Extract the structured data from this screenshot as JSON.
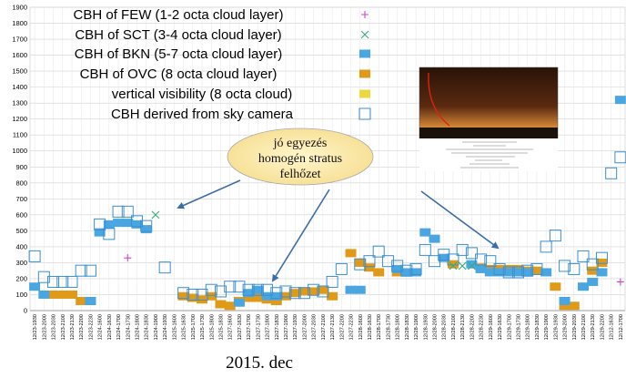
{
  "chart_data": {
    "type": "scatter",
    "xlabel": "2015. dec",
    "ylim": [
      0,
      1900
    ],
    "yticks": [
      0,
      100,
      200,
      300,
      400,
      500,
      600,
      700,
      800,
      900,
      1000,
      1100,
      1200,
      1300,
      1400,
      1500,
      1600,
      1700,
      1800,
      1900
    ],
    "grid": true,
    "legend_position": "top-left",
    "categories": [
      "12/23-1930",
      "12/23-2000",
      "12/23-2030",
      "12/23-2100",
      "12/23-2130",
      "12/23-2200",
      "12/23-2230",
      "12/24-1600",
      "12/24-1630",
      "12/24-1700",
      "12/24-1730",
      "12/24-1800",
      "12/24-1830",
      "12/24-1900",
      "12/24-1930",
      "12/25-1600",
      "12/25-1630",
      "12/25-1700",
      "12/25-1730",
      "12/25-1800",
      "12/25-1830",
      "12/27-1600",
      "12/27-1630",
      "12/27-1700",
      "12/27-1730",
      "12/27-1800",
      "12/27-1830",
      "12/27-1900",
      "12/27-1930",
      "12/27-2000",
      "12/27-2030",
      "12/27-2100",
      "12/27-2130",
      "12/27-2200",
      "12/27-2230",
      "12/28-1600",
      "12/28-1630",
      "12/28-1700",
      "12/28-1730",
      "12/28-1800",
      "12/28-1830",
      "12/28-1900",
      "12/28-1930",
      "12/28-2000",
      "12/28-2030",
      "12/28-2100",
      "12/28-2130",
      "12/28-2200",
      "12/28-2230",
      "12/29-1600",
      "12/29-1630",
      "12/29-1700",
      "12/29-1730",
      "12/29-1800",
      "12/29-1830",
      "12/29-1900",
      "12/29-1930",
      "12/29-2000",
      "12/29-2030",
      "12/29-2100",
      "12/29-2130",
      "12/29-2200",
      "12/12-1630",
      "12/12-1700"
    ],
    "series": [
      {
        "name": "CBH of FEW (1-2 octa cloud layer)",
        "marker": "plus",
        "color": "#cc44cc",
        "points": [
          [
            10,
            330
          ],
          [
            63,
            180
          ]
        ]
      },
      {
        "name": "CBH of SCT (3-4 octa cloud layer)",
        "marker": "x",
        "color": "#3aaa7a",
        "points": [
          [
            13,
            600
          ],
          [
            45,
            280
          ],
          [
            46,
            280
          ],
          [
            47,
            280
          ]
        ]
      },
      {
        "name": "CBH of BKN (5-7 octa cloud layer)",
        "marker": "square",
        "color": "#4aa6e0",
        "points": [
          [
            0,
            150
          ],
          [
            1,
            100
          ],
          [
            6,
            60
          ],
          [
            7,
            490
          ],
          [
            8,
            540
          ],
          [
            9,
            550
          ],
          [
            10,
            550
          ],
          [
            11,
            540
          ],
          [
            12,
            510
          ],
          [
            22,
            50
          ],
          [
            23,
            110
          ],
          [
            24,
            130
          ],
          [
            25,
            90
          ],
          [
            26,
            90
          ],
          [
            34,
            130
          ],
          [
            35,
            130
          ],
          [
            39,
            260
          ],
          [
            40,
            240
          ],
          [
            41,
            240
          ],
          [
            42,
            490
          ],
          [
            43,
            450
          ],
          [
            44,
            330
          ],
          [
            47,
            290
          ],
          [
            48,
            260
          ],
          [
            49,
            240
          ],
          [
            50,
            240
          ],
          [
            51,
            240
          ],
          [
            52,
            240
          ],
          [
            53,
            240
          ],
          [
            55,
            240
          ],
          [
            57,
            60
          ],
          [
            59,
            150
          ],
          [
            60,
            180
          ],
          [
            61,
            240
          ],
          [
            63,
            1320
          ]
        ]
      },
      {
        "name": "CBH of OVC   (8 octa cloud layer)",
        "marker": "square",
        "color": "#e09a18",
        "points": [
          [
            2,
            100
          ],
          [
            3,
            100
          ],
          [
            4,
            100
          ],
          [
            5,
            60
          ],
          [
            6,
            60
          ],
          [
            16,
            90
          ],
          [
            17,
            80
          ],
          [
            18,
            70
          ],
          [
            19,
            90
          ],
          [
            20,
            40
          ],
          [
            21,
            30
          ],
          [
            22,
            60
          ],
          [
            23,
            80
          ],
          [
            24,
            80
          ],
          [
            25,
            70
          ],
          [
            26,
            60
          ],
          [
            27,
            90
          ],
          [
            28,
            110
          ],
          [
            29,
            120
          ],
          [
            30,
            120
          ],
          [
            31,
            130
          ],
          [
            32,
            90
          ],
          [
            34,
            360
          ],
          [
            35,
            300
          ],
          [
            36,
            270
          ],
          [
            37,
            240
          ],
          [
            39,
            240
          ],
          [
            45,
            290
          ],
          [
            48,
            270
          ],
          [
            49,
            260
          ],
          [
            50,
            260
          ],
          [
            51,
            260
          ],
          [
            52,
            260
          ],
          [
            53,
            250
          ],
          [
            54,
            250
          ],
          [
            56,
            150
          ],
          [
            57,
            30
          ],
          [
            58,
            30
          ],
          [
            60,
            250
          ],
          [
            61,
            300
          ]
        ]
      },
      {
        "name": "vertical visibility (8 octa cloud)",
        "marker": "square",
        "color": "#eed840",
        "points": []
      },
      {
        "name": "CBH derived from sky camera",
        "marker": "hollow-square",
        "color": "#3a8fd0",
        "points": [
          [
            0,
            340
          ],
          [
            1,
            210
          ],
          [
            2,
            180
          ],
          [
            3,
            180
          ],
          [
            4,
            180
          ],
          [
            5,
            250
          ],
          [
            6,
            250
          ],
          [
            7,
            540
          ],
          [
            8,
            480
          ],
          [
            9,
            620
          ],
          [
            10,
            620
          ],
          [
            11,
            560
          ],
          [
            12,
            530
          ],
          [
            14,
            270
          ],
          [
            16,
            110
          ],
          [
            17,
            100
          ],
          [
            18,
            100
          ],
          [
            19,
            130
          ],
          [
            20,
            120
          ],
          [
            21,
            150
          ],
          [
            22,
            150
          ],
          [
            23,
            130
          ],
          [
            24,
            130
          ],
          [
            25,
            130
          ],
          [
            26,
            110
          ],
          [
            27,
            120
          ],
          [
            28,
            110
          ],
          [
            29,
            110
          ],
          [
            30,
            130
          ],
          [
            31,
            120
          ],
          [
            32,
            180
          ],
          [
            33,
            260
          ],
          [
            35,
            290
          ],
          [
            36,
            310
          ],
          [
            37,
            370
          ],
          [
            38,
            310
          ],
          [
            39,
            280
          ],
          [
            40,
            250
          ],
          [
            41,
            260
          ],
          [
            42,
            380
          ],
          [
            43,
            310
          ],
          [
            44,
            350
          ],
          [
            45,
            320
          ],
          [
            46,
            380
          ],
          [
            47,
            360
          ],
          [
            48,
            320
          ],
          [
            49,
            310
          ],
          [
            50,
            260
          ],
          [
            51,
            240
          ],
          [
            52,
            240
          ],
          [
            53,
            250
          ],
          [
            54,
            260
          ],
          [
            55,
            400
          ],
          [
            56,
            470
          ],
          [
            57,
            280
          ],
          [
            58,
            260
          ],
          [
            59,
            340
          ],
          [
            60,
            290
          ],
          [
            61,
            330
          ],
          [
            62,
            860
          ],
          [
            63,
            960
          ]
        ]
      }
    ],
    "annotation": {
      "lines": [
        "jó egyezés",
        "homogén stratus",
        "felhőzet"
      ]
    }
  }
}
